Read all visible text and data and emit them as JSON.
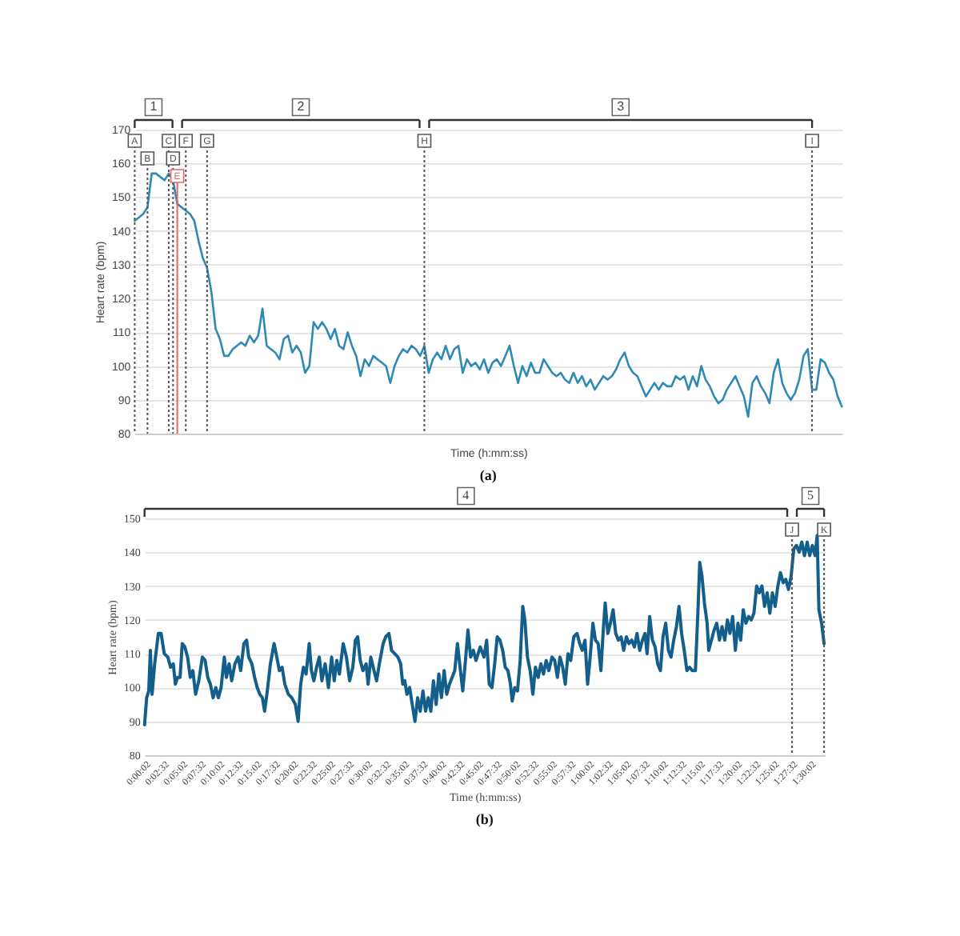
{
  "chart_data": [
    {
      "type": "line",
      "xlabel": "Time (h:mm:ss)",
      "ylabel": "Heart rate (bpm)",
      "categories": [
        null,
        null,
        null,
        null,
        null,
        null,
        null,
        null,
        null,
        null,
        null,
        null,
        null,
        null,
        null,
        null,
        null,
        null,
        null,
        null,
        null,
        null,
        null,
        null,
        null,
        null,
        null,
        null,
        null,
        null,
        null,
        null,
        null,
        null,
        null,
        null,
        null,
        null,
        null,
        null,
        null,
        null,
        null,
        null,
        null,
        null,
        null,
        null,
        null,
        null,
        null,
        null,
        null,
        null,
        null,
        null,
        null,
        null,
        null,
        null,
        null,
        null,
        null,
        null,
        null,
        null,
        null,
        null,
        null,
        null,
        null,
        null,
        null,
        null,
        null,
        null,
        null,
        null,
        null,
        null,
        null,
        null,
        null,
        null,
        null,
        null,
        null,
        null,
        null,
        null,
        null,
        null,
        null,
        null,
        null,
        null,
        null,
        null,
        null,
        null,
        null,
        null,
        null,
        null,
        null,
        null,
        null,
        null,
        null,
        null,
        null,
        null,
        null,
        null,
        null,
        null,
        null,
        null,
        null,
        null,
        null,
        null,
        null,
        null,
        null,
        null,
        null,
        null,
        null,
        null,
        null,
        null,
        null,
        null,
        null,
        null,
        null,
        null,
        null,
        null,
        null,
        null,
        null,
        null,
        null,
        null,
        null,
        null,
        null,
        null,
        null,
        null,
        null,
        null,
        null,
        null,
        null,
        null,
        null,
        null,
        null,
        null,
        null,
        null,
        null,
        null,
        null
      ],
      "series": [
        {
          "color": "#2f8ab3",
          "values": [
            143,
            144,
            145,
            147,
            157,
            157,
            156,
            155,
            157,
            155,
            148,
            147,
            146,
            145,
            143,
            137,
            132,
            129,
            122,
            111,
            108,
            103,
            103,
            105,
            106,
            107,
            106,
            109,
            107,
            109,
            117,
            106,
            105,
            104,
            102,
            108,
            109,
            104,
            106,
            104,
            98,
            100,
            113,
            111,
            113,
            111,
            108,
            111,
            106,
            105,
            110,
            106,
            103,
            97,
            102,
            100,
            103,
            102,
            101,
            100,
            95,
            100,
            103,
            105,
            104,
            106,
            105,
            103,
            106,
            98,
            102,
            104,
            102,
            106,
            102,
            105,
            106,
            98,
            102,
            100,
            101,
            99,
            102,
            98,
            101,
            102,
            100,
            103,
            106,
            100,
            95,
            100,
            97,
            101,
            98,
            98,
            102,
            100,
            98,
            97,
            98,
            96,
            95,
            98,
            95,
            97,
            94,
            96,
            93,
            95,
            97,
            96,
            97,
            99,
            102,
            104,
            100,
            98,
            97,
            94,
            91,
            93,
            95,
            93,
            95,
            94,
            94,
            97,
            96,
            97,
            93,
            97,
            94,
            100,
            96,
            94,
            91,
            89,
            90,
            93,
            95,
            97,
            94,
            91,
            85,
            95,
            97,
            94,
            92,
            89,
            98,
            102,
            95,
            92,
            90,
            92,
            96,
            103,
            105,
            93,
            93,
            102,
            101,
            98,
            96,
            91,
            88
          ]
        }
      ],
      "ylim": [
        80,
        170
      ],
      "yticks": [
        80,
        90,
        100,
        110,
        120,
        130,
        140,
        150,
        160,
        170
      ],
      "grid": "y",
      "annotations": [
        "1",
        "2",
        "3",
        "A",
        "B",
        "C",
        "D",
        "E",
        "F",
        "G",
        "H",
        "I",
        "(a)"
      ]
    },
    {
      "type": "line",
      "xlabel": "Time (h:mm:ss)",
      "ylabel": "Heart rate (bpm)",
      "x": [
        2,
        19,
        36,
        49,
        63,
        84,
        114,
        136,
        162,
        191,
        213,
        235,
        252,
        270,
        290,
        308,
        329,
        351,
        373,
        394,
        416,
        442,
        471,
        493,
        515,
        536,
        558,
        580,
        601,
        623,
        649,
        666,
        688,
        709,
        735,
        761,
        782,
        808,
        830,
        847,
        873,
        895,
        916,
        937,
        958,
        976,
        998,
        1023,
        1053,
        1075,
        1096,
        1118,
        1140,
        1169,
        1196,
        1226,
        1248,
        1269,
        1291,
        1313,
        1338,
        1356,
        1376,
        1398,
        1420,
        1441,
        1467,
        1494,
        1520,
        1541,
        1562,
        1583,
        1614,
        1640,
        1666,
        1692,
        1713,
        1731,
        1752,
        1774,
        1800,
        1816,
        1838,
        1864,
        1885,
        1907,
        1938,
        1959,
        1985,
        2006,
        2032,
        2058,
        2080,
        2097,
        2114,
        2131,
        2153,
        2174,
        2196,
        2218,
        2239,
        2261,
        2282,
        2304,
        2325,
        2346,
        2368,
        2390,
        2411,
        2433,
        2454,
        2476,
        2498,
        2519,
        2541,
        2562,
        2584,
        2606,
        2626,
        2648,
        2670,
        2691,
        2726,
        2756,
        2778,
        2799,
        2821,
        2843,
        2864,
        2886,
        2908,
        2929,
        2951,
        2971,
        2985,
        3006,
        3028,
        3050,
        3071,
        3088,
        3109,
        3131,
        3153,
        3174,
        3196,
        3218,
        3239,
        3261,
        3282,
        3308,
        3330,
        3352,
        3373,
        3395,
        3416,
        3438,
        3460,
        3485,
        3511,
        3533,
        3554,
        3576,
        3597,
        3618,
        3640,
        3661,
        3683,
        3705,
        3726,
        3740,
        3761,
        3782,
        3804,
        3825,
        3847,
        3869,
        3890,
        3912,
        3933,
        3955,
        3977,
        3998,
        4020,
        4042,
        4063,
        4080,
        4101,
        4123,
        4145,
        4166,
        4188,
        4209,
        4231,
        4253,
        4274,
        4296,
        4318,
        4339,
        4360,
        4381,
        4403,
        4425,
        4446,
        4472,
        4494,
        4507,
        4525,
        4545,
        4567,
        4580,
        4602,
        4624,
        4645,
        4667,
        4688,
        4710,
        4732,
        4752,
        4774,
        4796,
        4817,
        4839,
        4860,
        4882,
        4904,
        4925,
        4947,
        4969,
        4990,
        5012,
        5033,
        5054,
        5076,
        5097,
        5119,
        5141,
        5162,
        5184,
        5205,
        5227,
        5249,
        5270,
        5292,
        5314,
        5335,
        5357,
        5379,
        5399,
        5421,
        5443,
        5460,
        5474,
        5496,
        5516
      ],
      "series": [
        {
          "color": "#135e8a",
          "values": [
            89,
            97,
            99,
            111,
            98,
            107,
            116,
            116,
            110,
            109,
            106,
            107,
            101,
            103,
            103,
            113,
            112,
            109,
            103,
            105,
            98,
            102,
            109,
            108,
            103,
            101,
            97,
            100,
            97,
            100,
            109,
            103,
            107,
            102,
            107,
            109,
            105,
            113,
            114,
            109,
            107,
            103,
            100,
            98,
            97,
            93,
            99,
            107,
            113,
            109,
            105,
            106,
            101,
            98,
            97,
            95,
            90,
            101,
            106,
            104,
            113,
            105,
            102,
            106,
            109,
            102,
            107,
            100,
            109,
            102,
            108,
            104,
            113,
            109,
            102,
            106,
            114,
            115,
            108,
            105,
            107,
            101,
            109,
            105,
            102,
            107,
            113,
            115,
            116,
            111,
            110,
            109,
            107,
            101,
            102,
            98,
            100,
            95,
            90,
            97,
            93,
            99,
            93,
            97,
            93,
            102,
            95,
            104,
            97,
            105,
            98,
            101,
            103,
            105,
            113,
            106,
            99,
            108,
            117,
            109,
            111,
            108,
            112,
            109,
            114,
            101,
            100,
            107,
            115,
            114,
            111,
            106,
            105,
            101,
            96,
            100,
            99,
            108,
            124,
            120,
            109,
            105,
            98,
            106,
            103,
            107,
            104,
            108,
            105,
            109,
            108,
            103,
            109,
            106,
            101,
            110,
            108,
            115,
            116,
            113,
            111,
            114,
            101,
            109,
            119,
            114,
            113,
            105,
            118,
            125,
            116,
            119,
            123,
            116,
            114,
            115,
            111,
            115,
            113,
            114,
            112,
            116,
            111,
            114,
            116,
            110,
            121,
            114,
            112,
            107,
            105,
            115,
            119,
            111,
            109,
            114,
            118,
            124,
            116,
            111,
            105,
            106,
            105,
            105,
            124,
            137,
            133,
            125,
            119,
            111,
            114,
            117,
            119,
            114,
            118,
            114,
            120,
            116,
            121,
            111,
            119,
            114,
            123,
            119,
            121,
            120,
            122,
            130,
            128,
            130,
            124,
            128,
            122,
            128,
            124,
            130,
            134,
            131,
            132,
            129,
            133,
            141,
            142,
            140,
            143,
            139,
            143,
            139,
            142,
            139,
            145,
            123,
            119,
            113
          ]
        }
      ],
      "xlim": [
        2,
        5520
      ],
      "xticks": [
        {
          "value": 2,
          "label": "0:00:02"
        },
        {
          "value": 152,
          "label": "0:02:32"
        },
        {
          "value": 302,
          "label": "0:05:02"
        },
        {
          "value": 452,
          "label": "0:07:32"
        },
        {
          "value": 602,
          "label": "0:10:02"
        },
        {
          "value": 752,
          "label": "0:12:32"
        },
        {
          "value": 902,
          "label": "0:15:02"
        },
        {
          "value": 1052,
          "label": "0:17:32"
        },
        {
          "value": 1202,
          "label": "0:20:02"
        },
        {
          "value": 1352,
          "label": "0:22:32"
        },
        {
          "value": 1502,
          "label": "0:25:02"
        },
        {
          "value": 1652,
          "label": "0:27:32"
        },
        {
          "value": 1802,
          "label": "0:30:02"
        },
        {
          "value": 1952,
          "label": "0:32:32"
        },
        {
          "value": 2102,
          "label": "0:35:02"
        },
        {
          "value": 2252,
          "label": "0:37:32"
        },
        {
          "value": 2402,
          "label": "0:40:02"
        },
        {
          "value": 2552,
          "label": "0:42:32"
        },
        {
          "value": 2702,
          "label": "0:45:02"
        },
        {
          "value": 2852,
          "label": "0:47:32"
        },
        {
          "value": 3002,
          "label": "0:50:02"
        },
        {
          "value": 3152,
          "label": "0:52:32"
        },
        {
          "value": 3302,
          "label": "0:55:02"
        },
        {
          "value": 3452,
          "label": "0:57:32"
        },
        {
          "value": 3602,
          "label": "1:00:02"
        },
        {
          "value": 3752,
          "label": "1:02:32"
        },
        {
          "value": 3902,
          "label": "1:05:02"
        },
        {
          "value": 4052,
          "label": "1:07:32"
        },
        {
          "value": 4202,
          "label": "1:10:02"
        },
        {
          "value": 4352,
          "label": "1:12:32"
        },
        {
          "value": 4502,
          "label": "1:15:02"
        },
        {
          "value": 4652,
          "label": "1:17:32"
        },
        {
          "value": 4802,
          "label": "1:20:02"
        },
        {
          "value": 4952,
          "label": "1:22:32"
        },
        {
          "value": 5102,
          "label": "1:25:02"
        },
        {
          "value": 5252,
          "label": "1:27:32"
        },
        {
          "value": 5402,
          "label": "1:30:02"
        }
      ],
      "ylim": [
        80,
        150
      ],
      "yticks": [
        80,
        90,
        100,
        110,
        120,
        130,
        140,
        150
      ],
      "grid": "y",
      "ref_lines": [
        {
          "axis": "x",
          "value": 5256,
          "label": "J",
          "color": "#555555",
          "line_style": "dotted"
        },
        {
          "axis": "x",
          "value": 5516,
          "label": "K",
          "color": "#555555",
          "line_style": "dotted"
        }
      ],
      "annotations": [
        "4",
        "5",
        "(b)"
      ]
    }
  ]
}
